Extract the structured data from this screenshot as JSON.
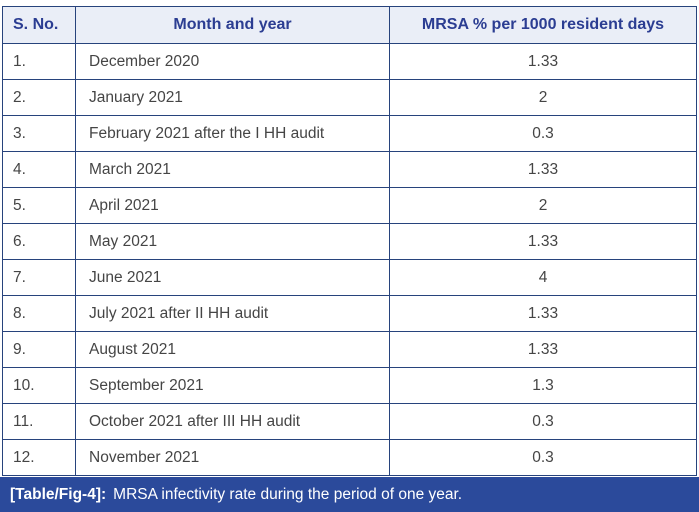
{
  "table": {
    "columns": {
      "sno": "S. No.",
      "month": "Month and year",
      "mrsa": "MRSA % per 1000 resident days"
    },
    "rows": [
      {
        "sno": "1.",
        "month": "December 2020",
        "value": "1.33"
      },
      {
        "sno": "2.",
        "month": "January 2021",
        "value": "2"
      },
      {
        "sno": "3.",
        "month": "February 2021 after the I HH audit",
        "value": "0.3"
      },
      {
        "sno": "4.",
        "month": "March 2021",
        "value": "1.33"
      },
      {
        "sno": "5.",
        "month": "April 2021",
        "value": "2"
      },
      {
        "sno": "6.",
        "month": "May 2021",
        "value": "1.33"
      },
      {
        "sno": "7.",
        "month": "June 2021",
        "value": "4"
      },
      {
        "sno": "8.",
        "month": "July 2021 after II HH audit",
        "value": "1.33"
      },
      {
        "sno": "9.",
        "month": "August 2021",
        "value": "1.33"
      },
      {
        "sno": "10.",
        "month": "September 2021",
        "value": "1.3"
      },
      {
        "sno": "11.",
        "month": "October 2021 after III HH audit",
        "value": "0.3"
      },
      {
        "sno": "12.",
        "month": "November 2021",
        "value": "0.3"
      }
    ]
  },
  "caption": {
    "label": "[Table/Fig-4]:",
    "text": "MRSA infectivity rate during the period of one year."
  },
  "colors": {
    "border": "#27437c",
    "header_bg": "#eaeef7",
    "header_text": "#2b3d92",
    "body_text": "#454545",
    "caption_bg": "#2b4a9b",
    "caption_text": "#ffffff"
  }
}
